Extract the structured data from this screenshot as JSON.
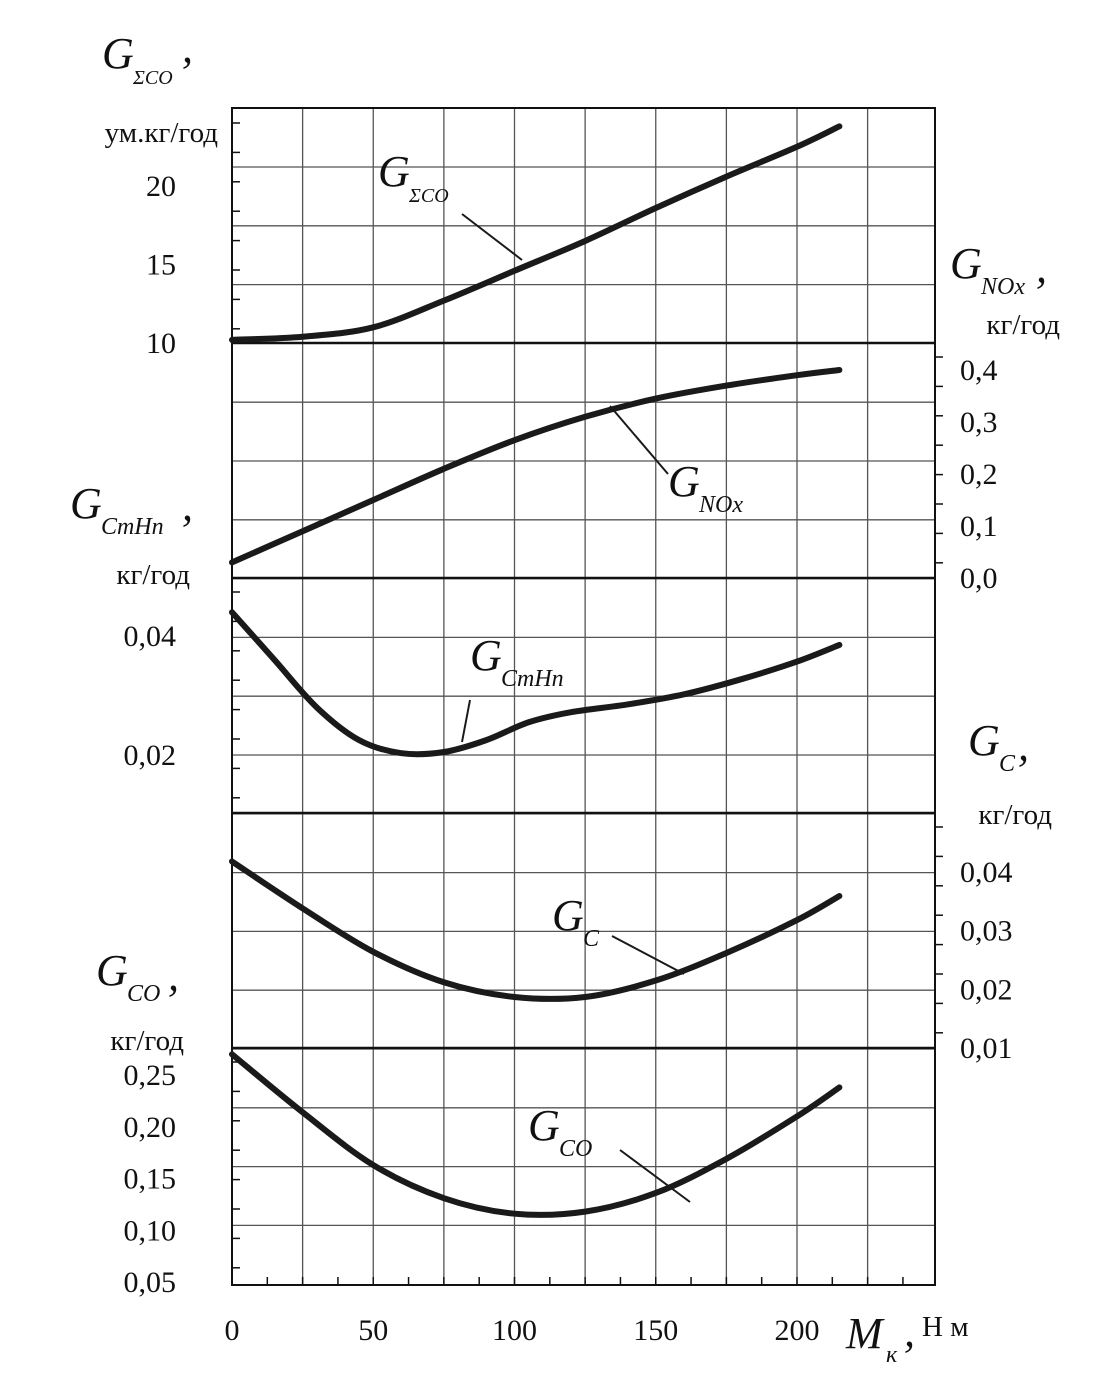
{
  "chart_data": {
    "type": "line",
    "x_axis": {
      "symbol": "M",
      "subscript": "к",
      "unit": "Н м",
      "range": [
        0,
        250
      ],
      "ticks": [
        0,
        50,
        100,
        150,
        200
      ],
      "tick_labels": [
        "0",
        "50",
        "100",
        "150",
        "200"
      ]
    },
    "grid": true,
    "panels": [
      {
        "id": "sum",
        "axis_side": "left",
        "axis_symbol": "G",
        "axis_subscript": "ΣCO",
        "axis_unit": "ум.кг/год",
        "range": [
          10,
          25
        ],
        "ticks": [
          10,
          15,
          20
        ],
        "tick_labels": [
          "10",
          "15",
          "20"
        ],
        "series": [
          {
            "label_symbol": "G",
            "label_subscript": "ΣCO",
            "x": [
              0,
              25,
              50,
              75,
              100,
              125,
              150,
              175,
              200,
              215
            ],
            "y": [
              10.2,
              10.4,
              11.0,
              12.7,
              14.6,
              16.5,
              18.6,
              20.6,
              22.5,
              23.8
            ]
          }
        ]
      },
      {
        "id": "nox",
        "axis_side": "right",
        "axis_symbol": "G",
        "axis_subscript": "NOx",
        "axis_unit": "кг/год",
        "range": [
          0.0,
          0.45
        ],
        "ticks": [
          0.0,
          0.1,
          0.2,
          0.3,
          0.4
        ],
        "tick_labels": [
          "0,0",
          "0,1",
          "0,2",
          "0,3",
          "0,4"
        ],
        "series": [
          {
            "label_symbol": "G",
            "label_subscript": "NOx",
            "x": [
              0,
              25,
              50,
              75,
              100,
              125,
              150,
              175,
              200,
              215
            ],
            "y": [
              0.03,
              0.09,
              0.15,
              0.21,
              0.265,
              0.31,
              0.345,
              0.37,
              0.39,
              0.4
            ]
          }
        ]
      },
      {
        "id": "cmhn",
        "axis_side": "left",
        "axis_symbol": "G",
        "axis_subscript": "CmHn",
        "axis_unit": "кг/год",
        "range": [
          0.01,
          0.05
        ],
        "ticks": [
          0.02,
          0.04
        ],
        "tick_labels": [
          "0,02",
          "0,04"
        ],
        "series": [
          {
            "label_symbol": "G",
            "label_subscript": "CmHn",
            "x": [
              0,
              15,
              30,
              45,
              60,
              75,
              90,
              105,
              120,
              140,
              160,
              180,
              200,
              215
            ],
            "y": [
              0.044,
              0.036,
              0.028,
              0.0225,
              0.0203,
              0.0205,
              0.0225,
              0.0255,
              0.0272,
              0.0285,
              0.0302,
              0.0327,
              0.0357,
              0.0385
            ]
          }
        ]
      },
      {
        "id": "c",
        "axis_side": "right",
        "axis_symbol": "G",
        "axis_subscript": "C",
        "axis_unit": "кг/год",
        "range": [
          0.01,
          0.05
        ],
        "ticks": [
          0.01,
          0.02,
          0.03,
          0.04
        ],
        "tick_labels": [
          "0,01",
          "0,02",
          "0,03",
          "0,04"
        ],
        "series": [
          {
            "label_symbol": "G",
            "label_subscript": "C",
            "x": [
              0,
              25,
              50,
              75,
              100,
              125,
              150,
              175,
              200,
              215
            ],
            "y": [
              0.0418,
              0.0338,
              0.0264,
              0.0212,
              0.0187,
              0.0187,
              0.0215,
              0.0262,
              0.0318,
              0.0359
            ]
          }
        ]
      },
      {
        "id": "co",
        "axis_side": "left",
        "axis_symbol": "G",
        "axis_subscript": "CO",
        "axis_unit": "кг/год",
        "range": [
          0.05,
          0.3
        ],
        "ticks": [
          0.05,
          0.1,
          0.15,
          0.2,
          0.25
        ],
        "tick_labels": [
          "0,05",
          "0,10",
          "0,15",
          "0,20",
          "0,25"
        ],
        "series": [
          {
            "label_symbol": "G",
            "label_subscript": "CO",
            "x": [
              0,
              25,
              50,
              75,
              100,
              125,
              150,
              175,
              200,
              215
            ],
            "y": [
              0.27,
              0.214,
              0.163,
              0.131,
              0.116,
              0.118,
              0.136,
              0.169,
              0.21,
              0.238
            ]
          }
        ]
      }
    ]
  }
}
